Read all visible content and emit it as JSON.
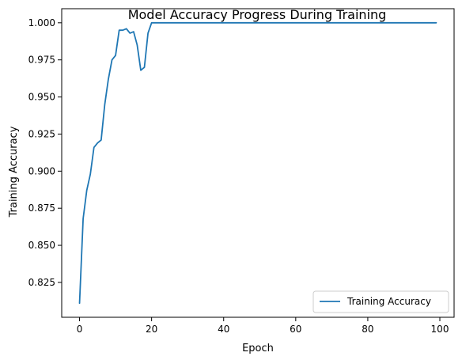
{
  "chart_data": {
    "type": "line",
    "title": "Model Accuracy Progress During Training",
    "xlabel": "Epoch",
    "ylabel": "Training Accuracy",
    "xlim": [
      -4.95,
      103.95
    ],
    "ylim": [
      0.8015,
      1.0095
    ],
    "xticks": [
      0,
      20,
      40,
      60,
      80,
      100
    ],
    "yticks": [
      0.825,
      0.85,
      0.875,
      0.9,
      0.925,
      0.95,
      0.975,
      1.0
    ],
    "ytick_labels": [
      "0.825",
      "0.850",
      "0.875",
      "0.900",
      "0.925",
      "0.950",
      "0.975",
      "1.000"
    ],
    "grid": false,
    "legend_position": "lower-right",
    "series": [
      {
        "name": "Training Accuracy",
        "color": "#1f77b4",
        "x": [
          0,
          1,
          2,
          3,
          4,
          5,
          6,
          7,
          8,
          9,
          10,
          11,
          12,
          13,
          14,
          15,
          16,
          17,
          18,
          19,
          20,
          21,
          22,
          23,
          24,
          25,
          26,
          27,
          28,
          29,
          30,
          31,
          32,
          33,
          34,
          35,
          36,
          37,
          38,
          39,
          40,
          41,
          42,
          43,
          44,
          45,
          46,
          47,
          48,
          49,
          50,
          51,
          52,
          53,
          54,
          55,
          56,
          57,
          58,
          59,
          60,
          61,
          62,
          63,
          64,
          65,
          66,
          67,
          68,
          69,
          70,
          71,
          72,
          73,
          74,
          75,
          76,
          77,
          78,
          79,
          80,
          81,
          82,
          83,
          84,
          85,
          86,
          87,
          88,
          89,
          90,
          91,
          92,
          93,
          94,
          95,
          96,
          97,
          98,
          99
        ],
        "values": [
          0.811,
          0.868,
          0.887,
          0.898,
          0.916,
          0.919,
          0.921,
          0.945,
          0.962,
          0.975,
          0.978,
          0.995,
          0.995,
          0.996,
          0.993,
          0.994,
          0.985,
          0.968,
          0.97,
          0.993,
          1.0,
          1.0,
          1.0,
          1.0,
          1.0,
          1.0,
          1.0,
          1.0,
          1.0,
          1.0,
          1.0,
          1.0,
          1.0,
          1.0,
          1.0,
          1.0,
          1.0,
          1.0,
          1.0,
          1.0,
          1.0,
          1.0,
          1.0,
          1.0,
          1.0,
          1.0,
          1.0,
          1.0,
          1.0,
          1.0,
          1.0,
          1.0,
          1.0,
          1.0,
          1.0,
          1.0,
          1.0,
          1.0,
          1.0,
          1.0,
          1.0,
          1.0,
          1.0,
          1.0,
          1.0,
          1.0,
          1.0,
          1.0,
          1.0,
          1.0,
          1.0,
          1.0,
          1.0,
          1.0,
          1.0,
          1.0,
          1.0,
          1.0,
          1.0,
          1.0,
          1.0,
          1.0,
          1.0,
          1.0,
          1.0,
          1.0,
          1.0,
          1.0,
          1.0,
          1.0,
          1.0,
          1.0,
          1.0,
          1.0,
          1.0,
          1.0,
          1.0,
          1.0,
          1.0,
          1.0
        ]
      }
    ]
  }
}
